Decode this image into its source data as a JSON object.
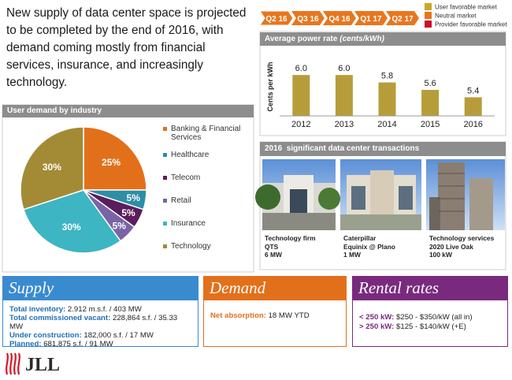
{
  "headline": "New supply of data center space is projected to be completed by the end of 2016, with demand coming mostly from financial services, insurance, and increasingly technology.",
  "timeline": {
    "quarters": [
      "Q2 16",
      "Q3 16",
      "Q4 16",
      "Q1 17",
      "Q2 17"
    ],
    "color": "#e8761f",
    "legend": [
      {
        "label": "User favorable market",
        "color": "#c9a62c"
      },
      {
        "label": "Neutral market",
        "color": "#e8761f"
      },
      {
        "label": "Provider favorable market",
        "color": "#c8102e"
      }
    ]
  },
  "chart_data": [
    {
      "type": "pie",
      "title": "User demand by industry",
      "categories": [
        "Banking & Financial Services",
        "Healthcare",
        "Telecom",
        "Retail",
        "Insurance",
        "Technology"
      ],
      "values": [
        25,
        5,
        5,
        5,
        30,
        30
      ],
      "value_labels": [
        "25%",
        "5%",
        "5%",
        "5%",
        "30%",
        "30%"
      ],
      "colors": [
        "#e2701b",
        "#2d8ea6",
        "#5a1e5c",
        "#7a63a6",
        "#3db5c2",
        "#a38b36"
      ]
    },
    {
      "type": "bar",
      "title": "Average power rate",
      "title_unit": "(cents/kWh)",
      "ylabel": "Cents per kWh",
      "categories": [
        "2012",
        "2013",
        "2014",
        "2015",
        "2016"
      ],
      "values": [
        6,
        6,
        5.8,
        5.6,
        5.4
      ],
      "value_labels": [
        "6.0",
        "6.0",
        "5.8",
        "5.6",
        "5.4"
      ],
      "color": "#b79d3a",
      "ylim": [
        4.9,
        6.3
      ]
    }
  ],
  "transactions": {
    "title": "2016  significant data center transactions",
    "items": [
      {
        "lines": [
          "Technology firm",
          "QTS",
          "6 MW"
        ]
      },
      {
        "lines": [
          "Caterpillar",
          "Equinix @ Plano",
          "1 MW"
        ]
      },
      {
        "lines": [
          "Technology services",
          "2020 Live Oak",
          "100 kW"
        ]
      }
    ]
  },
  "supply": {
    "title": "Supply",
    "rows": [
      {
        "label": "Total inventory:",
        "value": "2.912 m.s.f. / 403 MW"
      },
      {
        "label": "Total commissioned vacant:",
        "value": "228,864 s.f. / 35.33 MW"
      },
      {
        "label": "Under construction:",
        "value": "182,000 s.f. / 17 MW"
      },
      {
        "label": "Planned:",
        "value": "681,875 s.f. / 91 MW"
      }
    ]
  },
  "demand": {
    "title": "Demand",
    "rows": [
      {
        "label": "Net absorption:",
        "value": "18 MW YTD"
      }
    ]
  },
  "rental": {
    "title": "Rental rates",
    "rows": [
      {
        "label": "< 250 kW:",
        "value": "$250 - $350/kW (all in)"
      },
      {
        "label": "> 250 kW:",
        "value": "$125 - $140/kW (+E)"
      }
    ]
  },
  "logo": "JLL"
}
